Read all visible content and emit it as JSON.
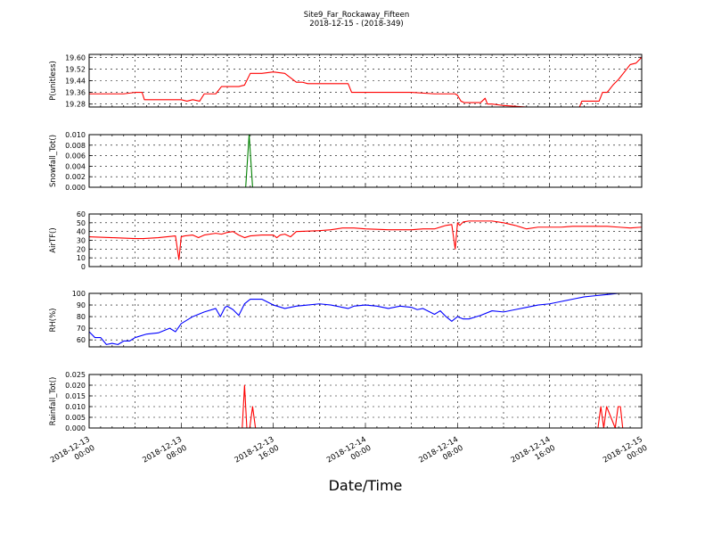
{
  "figure": {
    "title": "Site9_Far_Rockaway_Fifteen",
    "subtitle": "2018-12-15 - (2018-349)",
    "xlabel": "Date/Time",
    "x_ticks": [
      {
        "l1": "2018-12-13",
        "l2": "00:00",
        "h": 0
      },
      {
        "l1": "2018-12-13",
        "l2": "08:00",
        "h": 8
      },
      {
        "l1": "2018-12-13",
        "l2": "16:00",
        "h": 16
      },
      {
        "l1": "2018-12-14",
        "l2": "00:00",
        "h": 24
      },
      {
        "l1": "2018-12-14",
        "l2": "08:00",
        "h": 32
      },
      {
        "l1": "2018-12-14",
        "l2": "16:00",
        "h": 40
      },
      {
        "l1": "2018-12-15",
        "l2": "00:00",
        "h": 48
      }
    ]
  },
  "chart_data": [
    {
      "type": "line",
      "ylabel": "P(unitless)",
      "ylim": [
        19.26,
        19.62
      ],
      "yticks": [
        "19.28",
        "19.36",
        "19.44",
        "19.52",
        "19.60"
      ],
      "ytick_values": [
        19.28,
        19.36,
        19.44,
        19.52,
        19.6
      ],
      "xlim": [
        "2018-12-13 00:00",
        "2018-12-15 00:00"
      ],
      "grid": true,
      "series": [
        {
          "color": "#ff0000",
          "x_hours": [
            0,
            1,
            2,
            3,
            4,
            4.6,
            4.8,
            5,
            6,
            7,
            8,
            8.5,
            9,
            9.6,
            10,
            11,
            11.5,
            12,
            13,
            13.5,
            14,
            15,
            16,
            17,
            18,
            18.5,
            19,
            20,
            21,
            22,
            22.5,
            22.8,
            23,
            24,
            26,
            28,
            30,
            31,
            31.8,
            32,
            32.3,
            32.6,
            33,
            34,
            34.4,
            34.6,
            35,
            36,
            38,
            39,
            40,
            41,
            42,
            42.6,
            42.8,
            43,
            44,
            44.3,
            44.6,
            45,
            45.5,
            46,
            46.5,
            47,
            47.5,
            48
          ],
          "y": [
            19.35,
            19.35,
            19.35,
            19.35,
            19.36,
            19.36,
            19.31,
            19.31,
            19.31,
            19.31,
            19.31,
            19.3,
            19.31,
            19.3,
            19.35,
            19.35,
            19.4,
            19.4,
            19.4,
            19.41,
            19.49,
            19.49,
            19.5,
            19.49,
            19.43,
            19.43,
            19.42,
            19.42,
            19.42,
            19.42,
            19.42,
            19.36,
            19.36,
            19.36,
            19.36,
            19.36,
            19.35,
            19.35,
            19.35,
            19.34,
            19.3,
            19.29,
            19.29,
            19.29,
            19.32,
            19.28,
            19.28,
            19.27,
            19.26,
            19.26,
            19.26,
            19.26,
            19.26,
            19.26,
            19.3,
            19.3,
            19.3,
            19.3,
            19.36,
            19.36,
            19.41,
            19.45,
            19.5,
            19.55,
            19.56,
            19.6
          ]
        }
      ]
    },
    {
      "type": "line",
      "ylabel": "Snowfall_Tot()",
      "ylim": [
        0,
        0.01
      ],
      "yticks": [
        "0.000",
        "0.002",
        "0.004",
        "0.006",
        "0.008",
        "0.010"
      ],
      "ytick_values": [
        0,
        0.002,
        0.004,
        0.006,
        0.008,
        0.01
      ],
      "xlim": [
        "2018-12-13 00:00",
        "2018-12-15 00:00"
      ],
      "grid": true,
      "series": [
        {
          "color": "#008000",
          "x_hours": [
            0,
            13.6,
            13.9,
            14.2,
            48
          ],
          "y": [
            0,
            0,
            0.01,
            0,
            0
          ]
        }
      ]
    },
    {
      "type": "line",
      "ylabel": "AirTF()",
      "ylim": [
        0,
        60
      ],
      "yticks": [
        "0",
        "10",
        "20",
        "30",
        "40",
        "50",
        "60"
      ],
      "ytick_values": [
        0,
        10,
        20,
        30,
        40,
        50,
        60
      ],
      "xlim": [
        "2018-12-13 00:00",
        "2018-12-15 00:00"
      ],
      "grid": true,
      "series": [
        {
          "color": "#ff0000",
          "x_hours": [
            0,
            2,
            4,
            4.7,
            6,
            7.5,
            7.8,
            8,
            8.3,
            9,
            9.5,
            10,
            11,
            11.5,
            12,
            12.5,
            13,
            13.5,
            14,
            15,
            16,
            16.3,
            16.6,
            17,
            17.5,
            18,
            20,
            21,
            22,
            23,
            24,
            26,
            28,
            29,
            30,
            31,
            31.5,
            31.8,
            32,
            32.2,
            32.5,
            33,
            34,
            35,
            36,
            37,
            38,
            39,
            40,
            41,
            42,
            43,
            44,
            45,
            46,
            47,
            48
          ],
          "y": [
            34,
            33,
            32,
            32,
            33,
            35,
            8,
            34,
            35,
            36,
            33,
            36,
            38,
            37,
            39,
            40,
            36,
            33,
            35,
            36,
            36,
            33,
            36,
            37,
            34,
            40,
            41,
            42,
            44,
            44,
            43,
            42,
            42,
            43,
            43,
            47,
            48,
            20,
            50,
            47,
            51,
            52,
            52,
            52,
            50,
            47,
            43,
            45,
            45,
            45,
            46,
            46,
            46,
            46,
            45,
            44,
            45
          ]
        }
      ]
    },
    {
      "type": "line",
      "ylabel": "RH(%)",
      "ylim": [
        54,
        100
      ],
      "yticks": [
        "60",
        "70",
        "80",
        "90",
        "100"
      ],
      "ytick_values": [
        60,
        70,
        80,
        90,
        100
      ],
      "xlim": [
        "2018-12-13 00:00",
        "2018-12-15 00:00"
      ],
      "grid": true,
      "series": [
        {
          "color": "#0000ff",
          "x_hours": [
            0,
            0.5,
            1,
            1.5,
            2,
            2.5,
            3,
            3.5,
            4,
            5,
            6,
            7,
            7.5,
            8,
            9,
            10,
            11,
            11.4,
            11.8,
            12,
            12.5,
            13,
            13.5,
            14,
            15,
            16,
            17,
            18,
            19,
            20,
            21,
            22,
            22.5,
            23,
            24,
            25,
            26,
            27,
            28,
            28.5,
            29,
            30,
            30.5,
            31,
            31.5,
            32,
            32.5,
            33,
            34,
            35,
            36,
            37,
            38,
            39,
            40,
            41,
            42,
            43,
            44,
            45,
            46,
            47,
            48
          ],
          "y": [
            67,
            62,
            62,
            56,
            57,
            56,
            59,
            59,
            62,
            65,
            66,
            70,
            67,
            74,
            80,
            84,
            87,
            80,
            88,
            89,
            86,
            81,
            91,
            95,
            95,
            90,
            87,
            89,
            90,
            91,
            90,
            88,
            87,
            89,
            90,
            89,
            87,
            89,
            88,
            86,
            87,
            82,
            85,
            80,
            76,
            80,
            78,
            78,
            81,
            85,
            84,
            86,
            88,
            90,
            91,
            93,
            95,
            97,
            98,
            99,
            100,
            100,
            100
          ]
        }
      ]
    },
    {
      "type": "line",
      "ylabel": "Rainfall_Tot()",
      "ylim": [
        0,
        0.025
      ],
      "yticks": [
        "0.000",
        "0.005",
        "0.010",
        "0.015",
        "0.020",
        "0.025"
      ],
      "ytick_values": [
        0,
        0.005,
        0.01,
        0.015,
        0.02,
        0.025
      ],
      "xlim": [
        "2018-12-13 00:00",
        "2018-12-15 00:00"
      ],
      "grid": true,
      "series": [
        {
          "color": "#ff0000",
          "x_hours": [
            0,
            13.3,
            13.5,
            13.7,
            13.95,
            14.2,
            14.45,
            44,
            44.2,
            44.45,
            44.7,
            44.95,
            45.7,
            45.95,
            46.15,
            46.35,
            48
          ],
          "y": [
            0,
            0,
            0.02,
            0,
            0,
            0.01,
            0,
            0,
            0,
            0.01,
            0,
            0.01,
            0,
            0.01,
            0.01,
            0,
            0
          ]
        }
      ]
    }
  ]
}
